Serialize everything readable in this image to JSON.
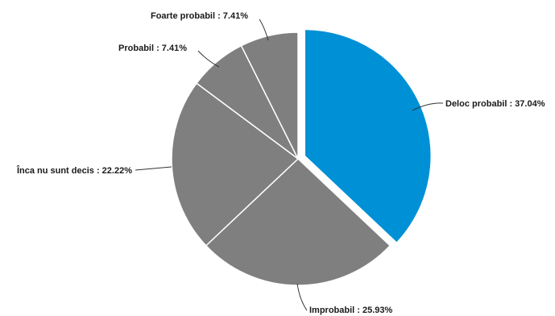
{
  "chart_data": {
    "type": "pie",
    "slices": [
      {
        "label": "Deloc probabil",
        "value": 37.04,
        "color": "#0090d6",
        "exploded": true,
        "display": "Deloc probabil : 37.04%"
      },
      {
        "label": "Improbabil",
        "value": 25.93,
        "color": "#7f7f7f",
        "exploded": false,
        "display": "Improbabil : 25.93%"
      },
      {
        "label": "Înca nu sunt decis",
        "value": 22.22,
        "color": "#7f7f7f",
        "exploded": false,
        "display": "Înca nu sunt decis : 22.22%"
      },
      {
        "label": "Probabil",
        "value": 7.41,
        "color": "#7f7f7f",
        "exploded": false,
        "display": "Probabil : 7.41%"
      },
      {
        "label": "Foarte probabil",
        "value": 7.41,
        "color": "#7f7f7f",
        "exploded": false,
        "display": "Foarte probabil : 7.41%"
      }
    ],
    "legend": false,
    "slice_border_color": "#ffffff"
  }
}
